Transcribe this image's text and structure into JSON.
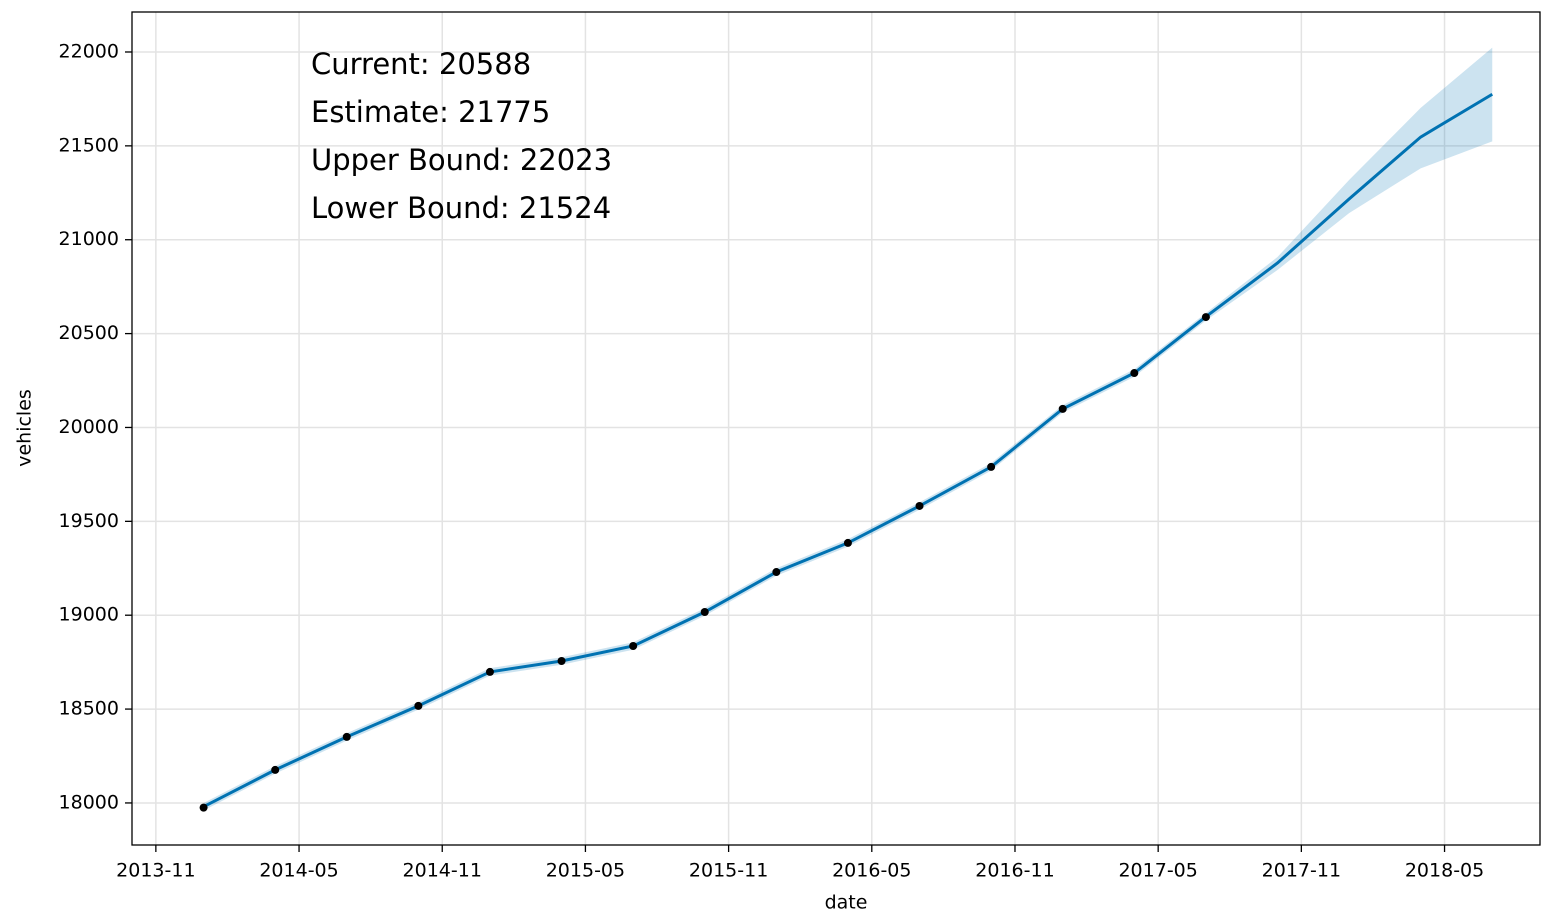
{
  "chart_data": {
    "type": "forecast",
    "xlabel": "date",
    "ylabel": "vehicles",
    "annotations": [
      "Current: 20588",
      "Estimate: 21775",
      "Upper Bound: 22023",
      "Lower Bound: 21524"
    ],
    "x": [
      "2014-01",
      "2014-04",
      "2014-07",
      "2014-10",
      "2015-01",
      "2015-04",
      "2015-07",
      "2015-10",
      "2016-01",
      "2016-04",
      "2016-07",
      "2016-10",
      "2017-01",
      "2017-04",
      "2017-07",
      "2017-10",
      "2018-01",
      "2018-04",
      "2018-07"
    ],
    "observed": [
      17975,
      18176,
      18352,
      18517,
      18698,
      18756,
      18836,
      19017,
      19230,
      19385,
      19582,
      19790,
      20099,
      20290,
      20588,
      null,
      null,
      null,
      null
    ],
    "forecast": [
      17980,
      18176,
      18352,
      18517,
      18698,
      18756,
      18836,
      19017,
      19230,
      19385,
      19582,
      19790,
      20099,
      20290,
      20590,
      20876,
      21217,
      21547,
      21775
    ],
    "upper": [
      18000,
      18196,
      18372,
      18537,
      18718,
      18776,
      18856,
      19037,
      19250,
      19405,
      19602,
      19810,
      20119,
      20310,
      20610,
      20908,
      21318,
      21702,
      22023
    ],
    "lower": [
      17960,
      18156,
      18332,
      18497,
      18678,
      18736,
      18816,
      18997,
      19210,
      19365,
      19562,
      19770,
      20079,
      20270,
      20570,
      20839,
      21142,
      21380,
      21524
    ],
    "color": "#0072b2",
    "band_color": "#0072b2",
    "point_color": "#000000",
    "xlim": [
      "2013-10",
      "2018-09"
    ],
    "xticks": [
      "2013-11",
      "2014-05",
      "2014-11",
      "2015-05",
      "2015-11",
      "2016-05",
      "2016-11",
      "2017-05",
      "2017-11",
      "2018-05"
    ],
    "ylim": [
      17776,
      22213
    ],
    "yticks": [
      18000,
      18500,
      19000,
      19500,
      20000,
      20500,
      21000,
      21500,
      22000
    ],
    "grid": true
  }
}
